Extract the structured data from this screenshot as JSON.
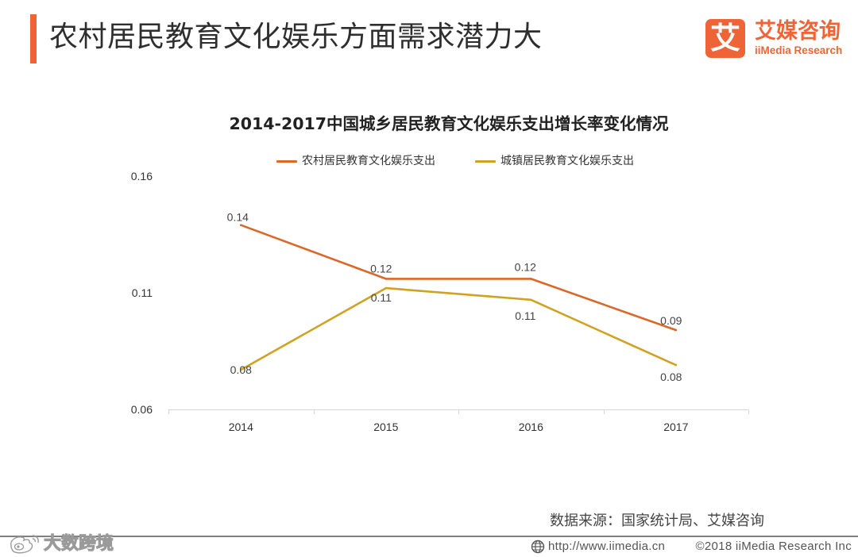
{
  "header": {
    "title": "农村居民教育文化娱乐方面需求潜力大",
    "brand_icon_char": "艾",
    "brand_name": "艾媒咨询",
    "brand_sub": "iiMedia Research"
  },
  "chart_data": {
    "type": "line",
    "title": "2014-2017中国城乡居民教育文化娱乐支出增长率变化情况",
    "categories": [
      "2014",
      "2015",
      "2016",
      "2017"
    ],
    "ylim": [
      0.06,
      0.16
    ],
    "yticks": [
      "0.16",
      "0.11",
      "0.06"
    ],
    "xlabel": "",
    "ylabel": "",
    "grid": false,
    "legend_position": "top",
    "series": [
      {
        "name": "农村居民教育文化娱乐支出",
        "color": "#d9682b",
        "values": [
          0.139,
          0.116,
          0.116,
          0.094
        ],
        "labels": [
          "0.14",
          "0.12",
          "0.12",
          "0.09"
        ]
      },
      {
        "name": "城镇居民教育文化娱乐支出",
        "color": "#d0a222",
        "values": [
          0.077,
          0.112,
          0.107,
          0.079
        ],
        "labels": [
          "0.08",
          "0.11",
          "0.11",
          "0.08"
        ]
      }
    ]
  },
  "footer": {
    "source": "数据来源：国家统计局、艾媒咨询",
    "url": "http://www.iimedia.cn",
    "copyright": "©2018 iiMedia Research Inc",
    "watermark": "大数跨境"
  },
  "colors": {
    "accent": "#ef6436"
  }
}
